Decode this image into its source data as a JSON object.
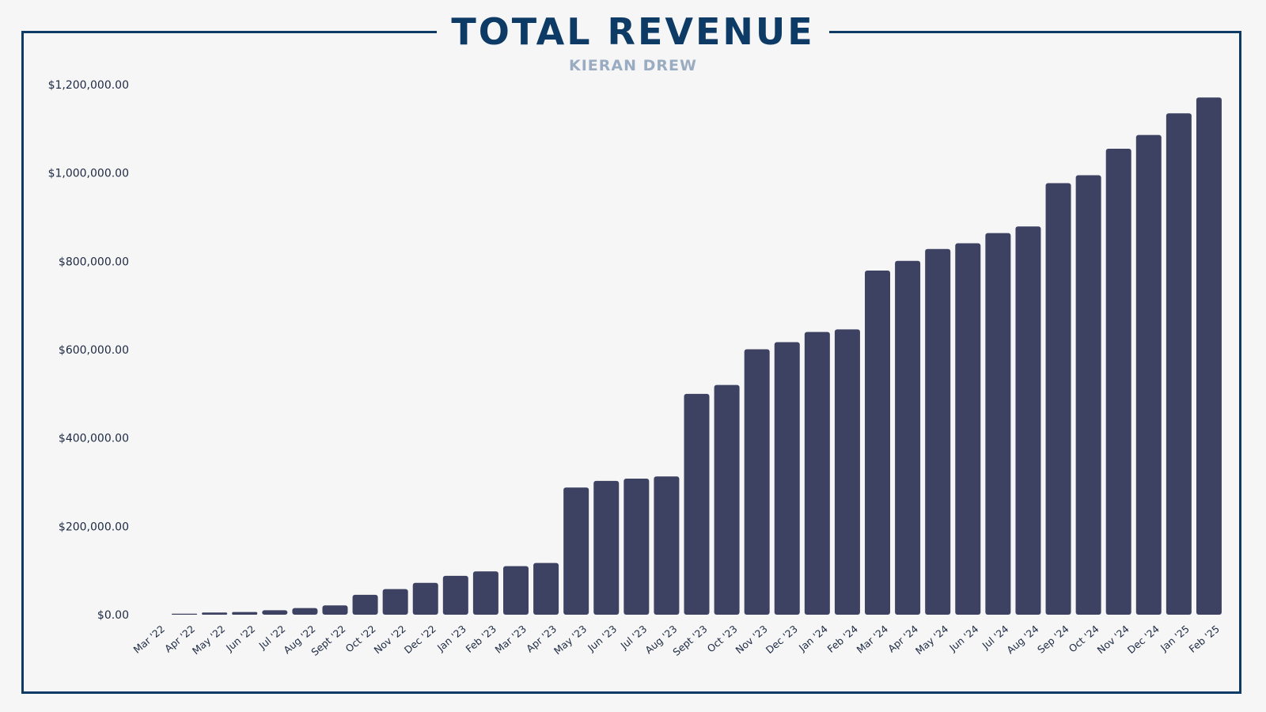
{
  "chart_data": {
    "type": "bar",
    "title": "TOTAL REVENUE",
    "subtitle": "KIERAN DREW",
    "xlabel": "",
    "ylabel": "",
    "ylim": [
      0,
      1200000
    ],
    "y_ticks": [
      "$0.00",
      "$200,000.00",
      "$400,000.00",
      "$600,000.00",
      "$800,000.00",
      "$1,000,000.00",
      "$1,200,000.00"
    ],
    "y_tick_values": [
      0,
      200000,
      400000,
      600000,
      800000,
      1000000,
      1200000
    ],
    "grid": false,
    "legend": "none",
    "bar_color": "#3d4262",
    "categories": [
      "Mar '22",
      "Apr '22",
      "May '22",
      "Jun '22",
      "Jul '22",
      "Aug '22",
      "Sept '22",
      "Oct '22",
      "Nov '22",
      "Dec '22",
      "Jan '23",
      "Feb '23",
      "Mar '23",
      "Apr '23",
      "May '23",
      "Jun '23",
      "Jul '23",
      "Aug '23",
      "Sept '23",
      "Oct '23",
      "Nov '23",
      "Dec '23",
      "Jan '24",
      "Feb '24",
      "Mar '24",
      "Apr '24",
      "May '24",
      "Jun '24",
      "Jul '24",
      "Aug '24",
      "Sep '24",
      "Oct '24",
      "Nov '24",
      "Dec '24",
      "Jan '25",
      "Feb '25"
    ],
    "values": [
      0,
      2000,
      5000,
      6000,
      10000,
      15000,
      21000,
      45000,
      58000,
      72000,
      88000,
      98000,
      110000,
      117000,
      288000,
      303000,
      308000,
      313000,
      500000,
      520000,
      601000,
      617000,
      640000,
      646000,
      779000,
      801000,
      828000,
      841000,
      864000,
      879000,
      977000,
      995000,
      1055000,
      1086000,
      1135000,
      1171000
    ]
  },
  "colors": {
    "frame": "#0d3b66",
    "title": "#0d3b66",
    "subtitle": "#9aacc2",
    "bar": "#3d4262",
    "background": "#f6f6f6"
  }
}
